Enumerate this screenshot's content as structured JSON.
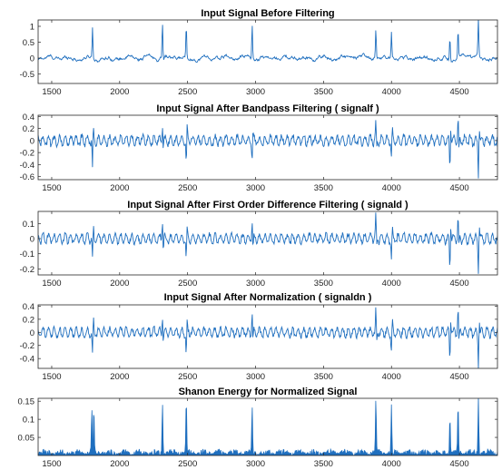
{
  "chart_data": [
    {
      "type": "line",
      "title": "Input Signal Before Filtering",
      "xlim": [
        1400,
        4780
      ],
      "ylim": [
        -0.8,
        1.2
      ],
      "xticks": [
        1500,
        2000,
        2500,
        3000,
        3500,
        4000,
        4500
      ],
      "yticks": [
        -0.5,
        0,
        0.5,
        1
      ],
      "ytick_labels": [
        "-0.5",
        "0",
        "0.5",
        "1"
      ],
      "color": "#1f6fbf",
      "kind": "raw",
      "baseline": 0,
      "noise": 0.07,
      "peaks": [
        {
          "x": 1800,
          "y": 1.0
        },
        {
          "x": 2315,
          "y": 1.15
        },
        {
          "x": 2490,
          "y": 1.0
        },
        {
          "x": 2975,
          "y": 1.1
        },
        {
          "x": 3885,
          "y": 0.9
        },
        {
          "x": 4000,
          "y": 0.85
        },
        {
          "x": 4430,
          "y": 0.7
        },
        {
          "x": 4490,
          "y": 0.9
        },
        {
          "x": 4640,
          "y": 1.15
        }
      ]
    },
    {
      "type": "line",
      "title": "Input Signal After Bandpass Filtering  ( signalf )",
      "xlim": [
        1400,
        4780
      ],
      "ylim": [
        -0.65,
        0.42
      ],
      "xticks": [
        1500,
        2000,
        2500,
        3000,
        3500,
        4000,
        4500
      ],
      "yticks": [
        -0.6,
        -0.4,
        -0.2,
        0,
        0.2,
        0.4
      ],
      "ytick_labels": [
        "-0.6",
        "-0.4",
        "-0.2",
        "0",
        "0.2",
        "0.4"
      ],
      "color": "#1f6fbf",
      "kind": "bandpass",
      "baseline": 0,
      "noise": 0.08,
      "peaks": [
        {
          "x": 1800,
          "y": -0.5
        },
        {
          "x": 2315,
          "y": 0.3
        },
        {
          "x": 2490,
          "y": -0.4
        },
        {
          "x": 2975,
          "y": -0.3
        },
        {
          "x": 3885,
          "y": 0.3
        },
        {
          "x": 4000,
          "y": -0.3
        },
        {
          "x": 4430,
          "y": -0.5
        },
        {
          "x": 4490,
          "y": 0.4
        },
        {
          "x": 4640,
          "y": -0.6
        }
      ]
    },
    {
      "type": "line",
      "title": "Input Signal After First Order Difference Filtering  ( signald )",
      "xlim": [
        1400,
        4780
      ],
      "ylim": [
        -0.24,
        0.18
      ],
      "xticks": [
        1500,
        2000,
        2500,
        3000,
        3500,
        4000,
        4500
      ],
      "yticks": [
        -0.2,
        -0.1,
        0,
        0.1
      ],
      "ytick_labels": [
        "-0.2",
        "-0.1",
        "0",
        "0.1"
      ],
      "color": "#1f6fbf",
      "kind": "bandpass",
      "baseline": 0,
      "noise": 0.03,
      "peaks": [
        {
          "x": 1800,
          "y": -0.15
        },
        {
          "x": 2315,
          "y": 0.14
        },
        {
          "x": 2490,
          "y": -0.14
        },
        {
          "x": 2975,
          "y": 0.14
        },
        {
          "x": 3885,
          "y": 0.15
        },
        {
          "x": 4000,
          "y": -0.16
        },
        {
          "x": 4430,
          "y": -0.2
        },
        {
          "x": 4490,
          "y": 0.15
        },
        {
          "x": 4640,
          "y": -0.22
        }
      ]
    },
    {
      "type": "line",
      "title": "Input Signal After Normalization  ( signaldn )",
      "xlim": [
        1400,
        4780
      ],
      "ylim": [
        -0.55,
        0.42
      ],
      "xticks": [
        1500,
        2000,
        2500,
        3000,
        3500,
        4000,
        4500
      ],
      "yticks": [
        -0.4,
        -0.2,
        0,
        0.2,
        0.4
      ],
      "ytick_labels": [
        "-0.4",
        "-0.2",
        "0",
        "0.2",
        "0.4"
      ],
      "color": "#1f6fbf",
      "kind": "bandpass",
      "baseline": 0,
      "noise": 0.07,
      "peaks": [
        {
          "x": 1800,
          "y": -0.4
        },
        {
          "x": 2315,
          "y": 0.3
        },
        {
          "x": 2490,
          "y": -0.35
        },
        {
          "x": 2975,
          "y": 0.3
        },
        {
          "x": 3885,
          "y": 0.35
        },
        {
          "x": 4000,
          "y": -0.35
        },
        {
          "x": 4430,
          "y": -0.45
        },
        {
          "x": 4490,
          "y": 0.38
        },
        {
          "x": 4640,
          "y": -0.5
        }
      ]
    },
    {
      "type": "area",
      "title": "Shanon Energy for Normalized Signal",
      "xlim": [
        1400,
        4780
      ],
      "ylim": [
        0,
        0.158
      ],
      "xticks": [
        1500,
        2000,
        2500,
        3000,
        3500,
        4000,
        4500
      ],
      "yticks": [
        0.05,
        0.1,
        0.15
      ],
      "ytick_labels": [
        "0.05",
        "0.1",
        "0.15"
      ],
      "color": "#1f6fbf",
      "kind": "energy",
      "baseline": 0,
      "noise": 0.012,
      "peaks": [
        {
          "x": 1795,
          "y": 0.115
        },
        {
          "x": 1810,
          "y": 0.12
        },
        {
          "x": 2315,
          "y": 0.145
        },
        {
          "x": 2490,
          "y": 0.15
        },
        {
          "x": 2975,
          "y": 0.14
        },
        {
          "x": 3885,
          "y": 0.155
        },
        {
          "x": 4000,
          "y": 0.125
        },
        {
          "x": 4430,
          "y": 0.105
        },
        {
          "x": 4490,
          "y": 0.14
        },
        {
          "x": 4640,
          "y": 0.155
        }
      ]
    }
  ]
}
